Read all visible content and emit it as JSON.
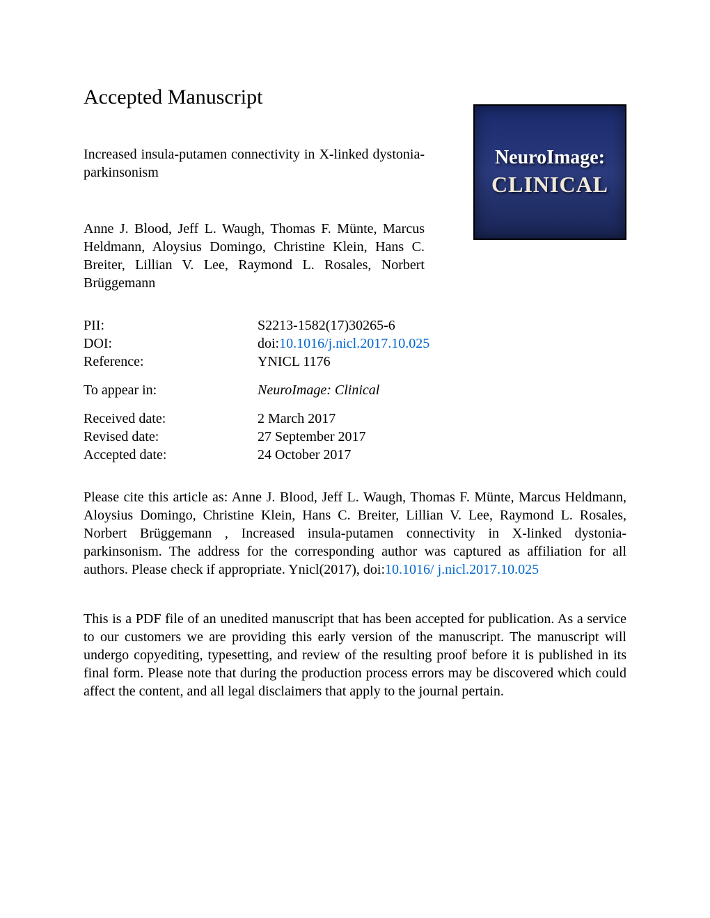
{
  "heading": "Accepted Manuscript",
  "article": {
    "title": "Increased insula-putamen connectivity in X-linked dystonia-parkinsonism",
    "authors": "Anne J. Blood, Jeff L. Waugh, Thomas F. Münte, Marcus Heldmann, Aloysius Domingo, Christine Klein, Hans C. Breiter, Lillian V. Lee, Raymond L. Rosales, Norbert Brüggemann"
  },
  "logo": {
    "line1": "NeuroImage:",
    "line2": "CLINICAL"
  },
  "meta": {
    "pii_label": "PII:",
    "pii_value": "S2213-1582(17)30265-6",
    "doi_label": "DOI:",
    "doi_prefix": "doi:",
    "doi_link": "10.1016/j.nicl.2017.10.025",
    "reference_label": "Reference:",
    "reference_value": "YNICL 1176",
    "appear_label": "To appear in:",
    "appear_value": "NeuroImage: Clinical",
    "received_label": "Received date:",
    "received_value": "2 March 2017",
    "revised_label": "Revised date:",
    "revised_value": "27 September 2017",
    "accepted_label": "Accepted date:",
    "accepted_value": "24 October 2017"
  },
  "citation": {
    "text_before": "Please cite this article as: Anne J. Blood, Jeff L. Waugh, Thomas F. Münte, Marcus Heldmann, Aloysius Domingo, Christine Klein, Hans C. Breiter, Lillian V. Lee, Raymond L. Rosales, Norbert Brüggemann , Increased insula-putamen connectivity in X-linked dystonia-parkinsonism. The address for the corresponding author was captured as affiliation for all authors. Please check if appropriate. Ynicl(2017), doi:",
    "link1": "10.1016/",
    "link2": "j.nicl.2017.10.025"
  },
  "disclaimer": "This is a PDF file of an unedited manuscript that has been accepted for publication. As a service to our customers we are providing this early version of the manuscript. The manuscript will undergo copyediting, typesetting, and review of the resulting proof before it is published in its final form. Please note that during the production process errors may be discovered which could affect the content, and all legal disclaimers that apply to the journal pertain.",
  "colors": {
    "link_color": "#0066cc",
    "text_color": "#000000",
    "background": "#ffffff",
    "logo_bg_start": "#1a2a6c",
    "logo_bg_end": "#1a2555"
  }
}
